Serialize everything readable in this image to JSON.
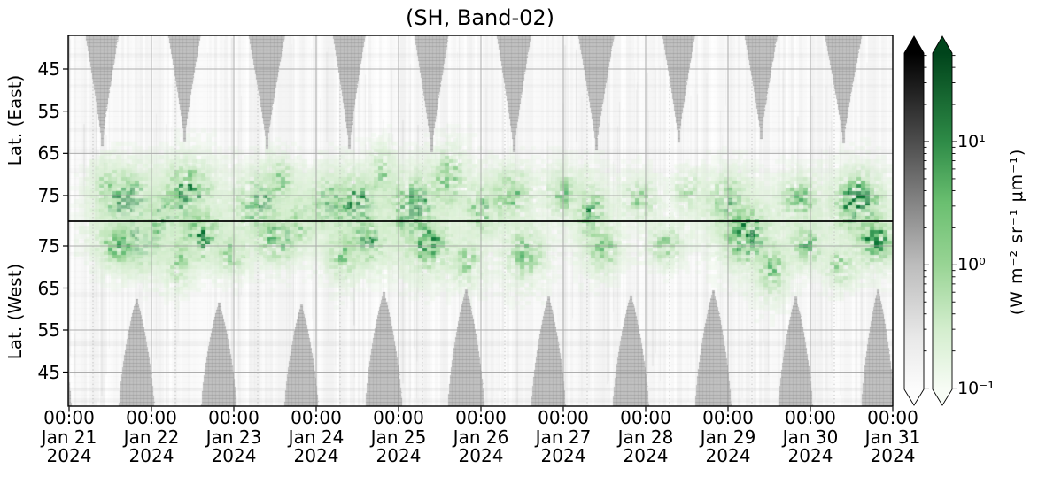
{
  "chart_data": {
    "type": "heatmap",
    "title": "(SH, Band-02)",
    "x_axis": {
      "span_days": 10,
      "ticks": [
        {
          "time": "00:00",
          "date": "Jan 21",
          "year": "2024"
        },
        {
          "time": "00:00",
          "date": "Jan 22",
          "year": "2024"
        },
        {
          "time": "00:00",
          "date": "Jan 23",
          "year": "2024"
        },
        {
          "time": "00:00",
          "date": "Jan 24",
          "year": "2024"
        },
        {
          "time": "00:00",
          "date": "Jan 25",
          "year": "2024"
        },
        {
          "time": "00:00",
          "date": "Jan 26",
          "year": "2024"
        },
        {
          "time": "00:00",
          "date": "Jan 27",
          "year": "2024"
        },
        {
          "time": "00:00",
          "date": "Jan 28",
          "year": "2024"
        },
        {
          "time": "00:00",
          "date": "Jan 29",
          "year": "2024"
        },
        {
          "time": "00:00",
          "date": "Jan 30",
          "year": "2024"
        },
        {
          "time": "00:00",
          "date": "Jan 31",
          "year": "2024"
        }
      ]
    },
    "y_axis": {
      "east": {
        "label": "Lat. (East)",
        "ticks": [
          45,
          55,
          65,
          75
        ]
      },
      "west": {
        "label": "Lat. (West)",
        "ticks": [
          75,
          65,
          55,
          45
        ]
      },
      "hemisphere_boundary_lat": 81
    },
    "colorbar": {
      "scale": "log",
      "tick_labels": [
        "10¹",
        "10⁰",
        "10⁻¹"
      ],
      "tick_values": [
        10,
        1,
        0.1
      ],
      "unit": "(W m⁻² sr⁻¹ μm⁻¹)",
      "colormaps": [
        "Greys",
        "Greens"
      ],
      "greys_stops": [
        {
          "pos": 0,
          "color": "#000000"
        },
        {
          "pos": 0.263,
          "color": "#4d4d4d"
        },
        {
          "pos": 0.629,
          "color": "#bcbcbc"
        },
        {
          "pos": 0.85,
          "color": "#e9e9e9"
        },
        {
          "pos": 1,
          "color": "#fcfcfc"
        }
      ],
      "greens_stops": [
        {
          "pos": 0,
          "color": "#00441b"
        },
        {
          "pos": 0.263,
          "color": "#2e8b47"
        },
        {
          "pos": 0.445,
          "color": "#6abf70"
        },
        {
          "pos": 0.629,
          "color": "#98d494"
        },
        {
          "pos": 0.82,
          "color": "#d3edcd"
        },
        {
          "pos": 1,
          "color": "#f7fcf5"
        }
      ]
    },
    "missing_data_gaps": {
      "top_centers_day": [
        0.4,
        1.4,
        2.4,
        3.4,
        4.4,
        5.4,
        6.4,
        7.4,
        8.4,
        9.4
      ],
      "bottom_centers_day": [
        -0.18,
        0.82,
        1.82,
        2.82,
        3.82,
        4.82,
        5.82,
        6.82,
        7.82,
        8.82,
        9.82
      ],
      "gap_color": "#bdbdbd"
    },
    "emission_clusters": [
      {
        "day": 0.45,
        "side": "E",
        "lat": 73,
        "rx_day": 0.2,
        "ry_deg": 6,
        "intensity": 0.5
      },
      {
        "day": 0.7,
        "side": "E",
        "lat": 77,
        "rx_day": 0.3,
        "ry_deg": 7,
        "intensity": 0.9
      },
      {
        "day": 0.85,
        "side": "W",
        "lat": 77,
        "rx_day": 0.35,
        "ry_deg": 6,
        "intensity": 0.8
      },
      {
        "day": 0.55,
        "side": "W",
        "lat": 76,
        "rx_day": 0.25,
        "ry_deg": 5,
        "intensity": 0.6
      },
      {
        "day": 1.15,
        "side": "E",
        "lat": 80,
        "rx_day": 0.25,
        "ry_deg": 7,
        "intensity": 0.7
      },
      {
        "day": 1.45,
        "side": "E",
        "lat": 75,
        "rx_day": 0.3,
        "ry_deg": 8,
        "intensity": 0.7
      },
      {
        "day": 1.6,
        "side": "W",
        "lat": 78,
        "rx_day": 0.3,
        "ry_deg": 6,
        "intensity": 0.65
      },
      {
        "day": 1.3,
        "side": "W",
        "lat": 72,
        "rx_day": 0.18,
        "ry_deg": 6,
        "intensity": 0.45
      },
      {
        "day": 1.95,
        "side": "W",
        "lat": 74,
        "rx_day": 0.2,
        "ry_deg": 5,
        "intensity": 0.5
      },
      {
        "day": 2.3,
        "side": "E",
        "lat": 77,
        "rx_day": 0.3,
        "ry_deg": 7,
        "intensity": 0.7
      },
      {
        "day": 2.55,
        "side": "E",
        "lat": 72,
        "rx_day": 0.2,
        "ry_deg": 6,
        "intensity": 0.5
      },
      {
        "day": 2.5,
        "side": "W",
        "lat": 78,
        "rx_day": 0.28,
        "ry_deg": 6,
        "intensity": 0.6
      },
      {
        "day": 2.8,
        "side": "E",
        "lat": 80,
        "rx_day": 0.2,
        "ry_deg": 6,
        "intensity": 0.55
      },
      {
        "day": 3.15,
        "side": "E",
        "lat": 77,
        "rx_day": 0.25,
        "ry_deg": 7,
        "intensity": 0.65
      },
      {
        "day": 3.5,
        "side": "E",
        "lat": 78,
        "rx_day": 0.3,
        "ry_deg": 8,
        "intensity": 0.75
      },
      {
        "day": 3.6,
        "side": "W",
        "lat": 77,
        "rx_day": 0.28,
        "ry_deg": 6,
        "intensity": 0.6
      },
      {
        "day": 3.3,
        "side": "W",
        "lat": 73,
        "rx_day": 0.2,
        "ry_deg": 6,
        "intensity": 0.5
      },
      {
        "day": 3.8,
        "side": "E",
        "lat": 70,
        "rx_day": 0.15,
        "ry_deg": 7,
        "intensity": 0.45
      },
      {
        "day": 4.2,
        "side": "E",
        "lat": 78,
        "rx_day": 0.3,
        "ry_deg": 8,
        "intensity": 0.8
      },
      {
        "day": 4.35,
        "side": "W",
        "lat": 76,
        "rx_day": 0.3,
        "ry_deg": 7,
        "intensity": 0.65
      },
      {
        "day": 4.6,
        "side": "E",
        "lat": 71,
        "rx_day": 0.22,
        "ry_deg": 7,
        "intensity": 0.55
      },
      {
        "day": 4.8,
        "side": "W",
        "lat": 72,
        "rx_day": 0.2,
        "ry_deg": 6,
        "intensity": 0.45
      },
      {
        "day": 5.05,
        "side": "E",
        "lat": 78,
        "rx_day": 0.25,
        "ry_deg": 6,
        "intensity": 0.6
      },
      {
        "day": 5.35,
        "side": "E",
        "lat": 74,
        "rx_day": 0.25,
        "ry_deg": 6,
        "intensity": 0.55
      },
      {
        "day": 5.5,
        "side": "W",
        "lat": 74,
        "rx_day": 0.25,
        "ry_deg": 7,
        "intensity": 0.5
      },
      {
        "day": 6.0,
        "side": "E",
        "lat": 74,
        "rx_day": 0.22,
        "ry_deg": 6,
        "intensity": 0.5
      },
      {
        "day": 6.3,
        "side": "E",
        "lat": 79,
        "rx_day": 0.18,
        "ry_deg": 7,
        "intensity": 0.65
      },
      {
        "day": 6.45,
        "side": "W",
        "lat": 75,
        "rx_day": 0.22,
        "ry_deg": 6,
        "intensity": 0.5
      },
      {
        "day": 6.9,
        "side": "E",
        "lat": 75,
        "rx_day": 0.22,
        "ry_deg": 5,
        "intensity": 0.45
      },
      {
        "day": 7.2,
        "side": "W",
        "lat": 76,
        "rx_day": 0.22,
        "ry_deg": 5,
        "intensity": 0.45
      },
      {
        "day": 7.5,
        "side": "E",
        "lat": 74,
        "rx_day": 0.2,
        "ry_deg": 5,
        "intensity": 0.4
      },
      {
        "day": 8.0,
        "side": "E",
        "lat": 77,
        "rx_day": 0.28,
        "ry_deg": 7,
        "intensity": 0.6
      },
      {
        "day": 8.2,
        "side": "W",
        "lat": 78,
        "rx_day": 0.3,
        "ry_deg": 7,
        "intensity": 0.75
      },
      {
        "day": 8.5,
        "side": "W",
        "lat": 70,
        "rx_day": 0.2,
        "ry_deg": 7,
        "intensity": 0.5
      },
      {
        "day": 8.85,
        "side": "E",
        "lat": 76,
        "rx_day": 0.25,
        "ry_deg": 6,
        "intensity": 0.55
      },
      {
        "day": 8.95,
        "side": "W",
        "lat": 76,
        "rx_day": 0.22,
        "ry_deg": 5,
        "intensity": 0.55
      },
      {
        "day": 9.55,
        "side": "E",
        "lat": 77,
        "rx_day": 0.28,
        "ry_deg": 7,
        "intensity": 0.85
      },
      {
        "day": 9.75,
        "side": "W",
        "lat": 77,
        "rx_day": 0.25,
        "ry_deg": 6,
        "intensity": 0.7
      },
      {
        "day": 9.35,
        "side": "W",
        "lat": 71,
        "rx_day": 0.18,
        "ry_deg": 5,
        "intensity": 0.45
      }
    ]
  }
}
